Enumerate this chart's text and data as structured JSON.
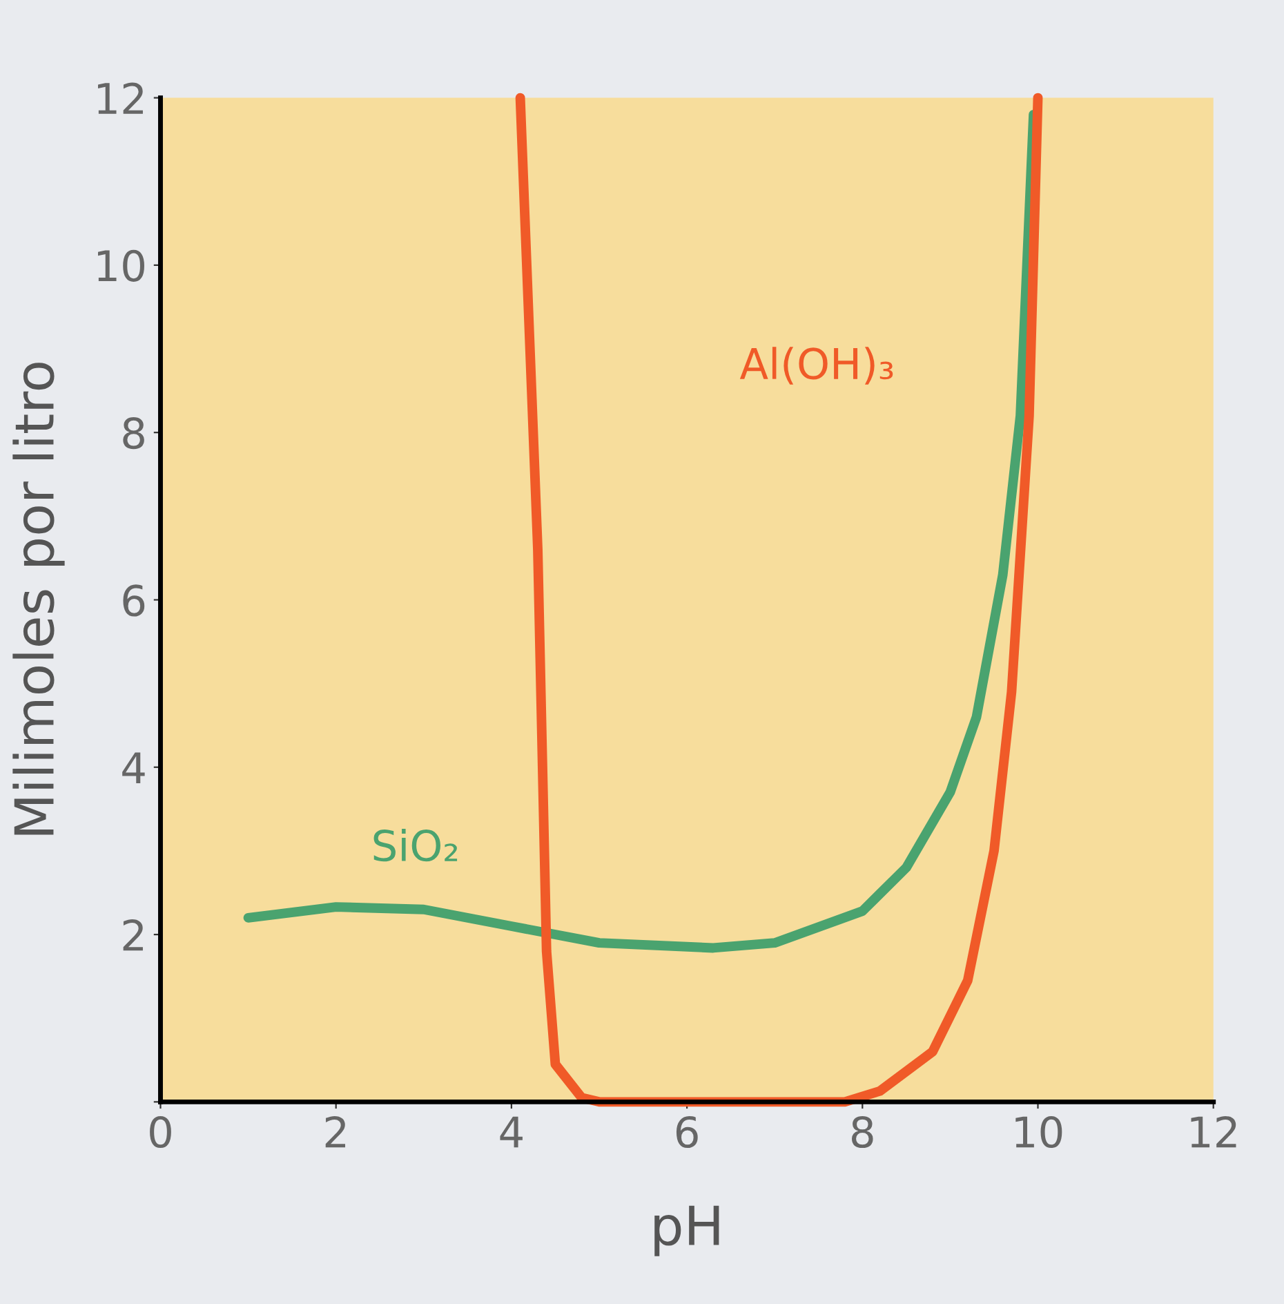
{
  "chart_data": {
    "type": "line",
    "xlabel": "pH",
    "ylabel": "Milimoles por litro",
    "xlim": [
      0,
      12
    ],
    "ylim": [
      0,
      12
    ],
    "xticks": [
      0,
      2,
      4,
      6,
      8,
      10,
      12
    ],
    "yticks": [
      {
        "value": 0,
        "label": null
      },
      2,
      4,
      6,
      8,
      10,
      12
    ],
    "grid": false,
    "legend": false,
    "marker": "none",
    "line_style": "solid",
    "series": [
      {
        "name": "SiO₂",
        "color": "#4aa36f",
        "x": [
          1,
          2,
          3,
          4,
          5,
          6.3,
          7,
          8,
          8.5,
          9,
          9.3,
          9.6,
          9.8,
          9.95
        ],
        "values": [
          2.2,
          2.33,
          2.3,
          2.1,
          1.9,
          1.84,
          1.9,
          2.28,
          2.8,
          3.7,
          4.6,
          6.3,
          8.2,
          11.8
        ]
      },
      {
        "name": "Al(OH)₃",
        "color": "#f05a28",
        "x": [
          4.1,
          4.3,
          4.4,
          4.5,
          4.8,
          5,
          7.8,
          8.2,
          8.8,
          9.2,
          9.5,
          9.7,
          9.9,
          10
        ],
        "values": [
          12,
          6.6,
          1.8,
          0.45,
          0.05,
          0,
          0,
          0.13,
          0.6,
          1.45,
          3,
          4.9,
          8.2,
          12
        ]
      }
    ]
  }
}
